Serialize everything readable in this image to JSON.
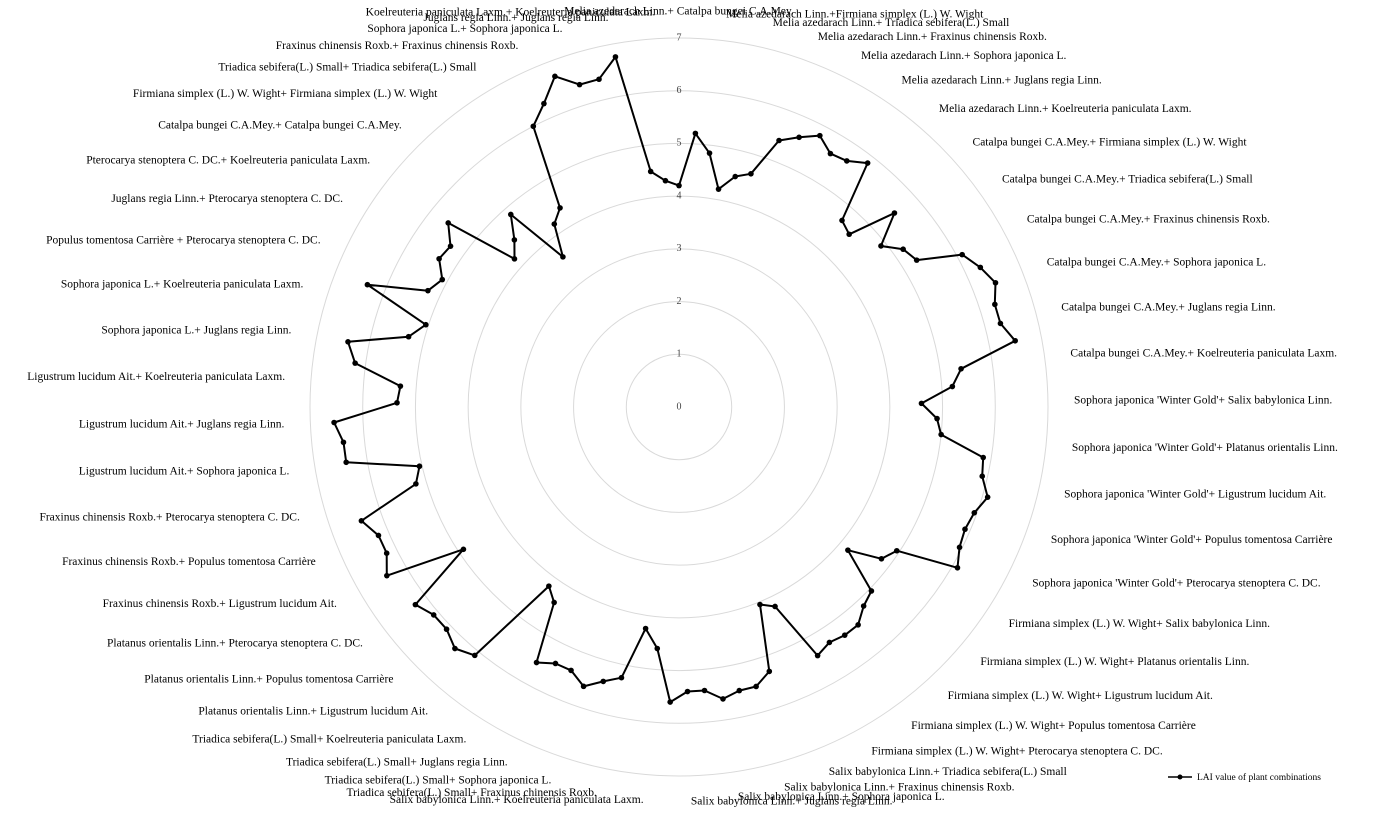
{
  "chart_data": {
    "type": "radar",
    "rlim": [
      0,
      7
    ],
    "rticks": [
      0,
      1,
      2,
      3,
      4,
      5,
      6,
      7
    ],
    "grid": true,
    "legend": "bottom-right",
    "categories": [
      "Melia azedarach Linn.+ Catalpa bungei C.A.Mey.",
      null,
      "Melia azedarach Linn.+Firmiana simplex (L.) W. Wight",
      null,
      "Melia azedarach Linn.+ Triadica sebifera(L.) Small",
      null,
      "Melia azedarach Linn.+ Fraxinus chinensis Roxb.",
      null,
      "Melia azedarach Linn.+ Sophora japonica L.",
      null,
      "Melia azedarach Linn.+ Juglans regia Linn.",
      null,
      "Melia azedarach Linn.+ Koelreuteria paniculata Laxm.",
      null,
      "Catalpa bungei C.A.Mey.+ Firmiana simplex (L.) W. Wight",
      null,
      "Catalpa bungei C.A.Mey.+ Triadica sebifera(L.) Small",
      null,
      "Catalpa bungei C.A.Mey.+ Fraxinus chinensis Roxb.",
      null,
      "Catalpa bungei C.A.Mey.+ Sophora japonica L.",
      null,
      "Catalpa bungei C.A.Mey.+ Juglans regia Linn.",
      null,
      "Catalpa bungei C.A.Mey.+ Koelreuteria paniculata Laxm.",
      null,
      "Sophora japonica 'Winter Gold'+ Salix babylonica Linn.",
      null,
      "Sophora japonica 'Winter Gold'+ Platanus orientalis Linn.",
      null,
      "Sophora japonica 'Winter Gold'+ Ligustrum lucidum Ait.",
      null,
      "Sophora japonica 'Winter Gold'+ Populus tomentosa Carrière",
      null,
      "Sophora japonica 'Winter Gold'+ Pterocarya stenoptera C. DC.",
      null,
      "Firmiana simplex (L.) W. Wight+ Salix babylonica Linn.",
      null,
      "Firmiana simplex (L.) W. Wight+ Platanus orientalis Linn.",
      null,
      "Firmiana simplex (L.) W. Wight+ Ligustrum lucidum Ait.",
      null,
      "Firmiana simplex (L.) W. Wight+ Populus tomentosa Carrière",
      null,
      "Firmiana simplex (L.) W. Wight+ Pterocarya stenoptera C. DC.",
      null,
      "Salix babylonica Linn.+ Triadica sebifera(L.) Small",
      null,
      "Salix babylonica Linn.+ Fraxinus chinensis Roxb.",
      null,
      "Salix babylonica Linn.+ Sophora japonica L.",
      null,
      "Salix babylonica Linn.+ Juglans regia Linn.",
      null,
      "Salix babylonica Linn.+ Koelreuteria paniculata Laxm.",
      null,
      "Triadica sebifera(L.) Small+ Fraxinus chinensis Roxb.",
      null,
      "Triadica sebifera(L.) Small+ Sophora japonica L.",
      null,
      "Triadica sebifera(L.) Small+ Juglans regia Linn.",
      null,
      "Triadica sebifera(L.) Small+ Koelreuteria paniculata Laxm.",
      null,
      "Platanus orientalis Linn.+ Ligustrum lucidum Ait.",
      null,
      "Platanus orientalis Linn.+ Populus tomentosa Carrière",
      null,
      "Platanus orientalis Linn.+ Pterocarya stenoptera C. DC.",
      null,
      "Fraxinus chinensis Roxb.+ Ligustrum lucidum Ait.",
      null,
      "Fraxinus chinensis Roxb.+ Populus tomentosa Carrière",
      null,
      "Fraxinus chinensis Roxb.+ Pterocarya stenoptera C. DC.",
      null,
      "Ligustrum lucidum Ait.+ Sophora japonica L.",
      null,
      "Ligustrum lucidum Ait.+ Juglans regia Linn.",
      null,
      "Ligustrum lucidum Ait.+ Koelreuteria paniculata Laxm.",
      null,
      "Sophora japonica L.+ Juglans regia Linn.",
      null,
      "Sophora japonica L.+ Koelreuteria paniculata Laxm.",
      null,
      "Populus tomentosa Carrière + Pterocarya stenoptera C. DC.",
      null,
      "Juglans regia Linn.+ Pterocarya stenoptera C. DC.",
      null,
      "Pterocarya stenoptera C. DC.+ Koelreuteria paniculata Laxm.",
      null,
      "Catalpa bungei C.A.Mey.+ Catalpa bungei C.A.Mey.",
      null,
      "Firmiana simplex (L.) W. Wight+ Firmiana simplex (L.) W. Wight",
      null,
      "Triadica sebifera(L.) Small+ Triadica sebifera(L.) Small",
      null,
      "Fraxinus chinensis Roxb.+ Fraxinus chinensis Roxb.",
      null,
      "Sophora japonica L.+ Sophora japonica L.",
      null,
      "Juglans regia Linn.+ Juglans regia Linn.",
      null,
      "Koelreuteria paniculata Laxm.+ Koelreuteria paniculata Laxm."
    ],
    "series": [
      {
        "name": "LAI value of plant combinations",
        "color": "#000000",
        "values": [
          4.2,
          5.2,
          4.85,
          4.2,
          4.5,
          4.63,
          5.4,
          5.6,
          5.8,
          5.6,
          5.65,
          5.85,
          4.7,
          4.6,
          5.5,
          4.9,
          5.2,
          5.3,
          6.1,
          6.3,
          6.45,
          6.3,
          6.3,
          6.5,
          5.4,
          5.2,
          4.6,
          4.9,
          5.0,
          5.85,
          5.9,
          6.1,
          5.95,
          5.9,
          5.95,
          6.1,
          4.95,
          4.8,
          4.2,
          5.05,
          5.15,
          5.35,
          5.35,
          5.3,
          5.4,
          4.2,
          4.05,
          5.3,
          5.5,
          5.5,
          5.6,
          5.4,
          5.4,
          5.6,
          4.6,
          4.25,
          5.25,
          5.4,
          5.6,
          5.4,
          5.4,
          5.55,
          4.4,
          4.2,
          6.1,
          6.25,
          6.1,
          6.1,
          6.25,
          4.9,
          6.4,
          6.2,
          6.2,
          6.4,
          5.2,
          5.05,
          6.4,
          6.4,
          6.55,
          5.35,
          5.3,
          6.2,
          6.4,
          5.3,
          5.05,
          6.35,
          5.25,
          5.1,
          5.35,
          5.3,
          5.6,
          4.2,
          4.45,
          4.85,
          3.6,
          4.2,
          4.4,
          6.0,
          6.3,
          6.7,
          6.4,
          6.4,
          6.75,
          4.5,
          4.3
        ]
      }
    ]
  }
}
